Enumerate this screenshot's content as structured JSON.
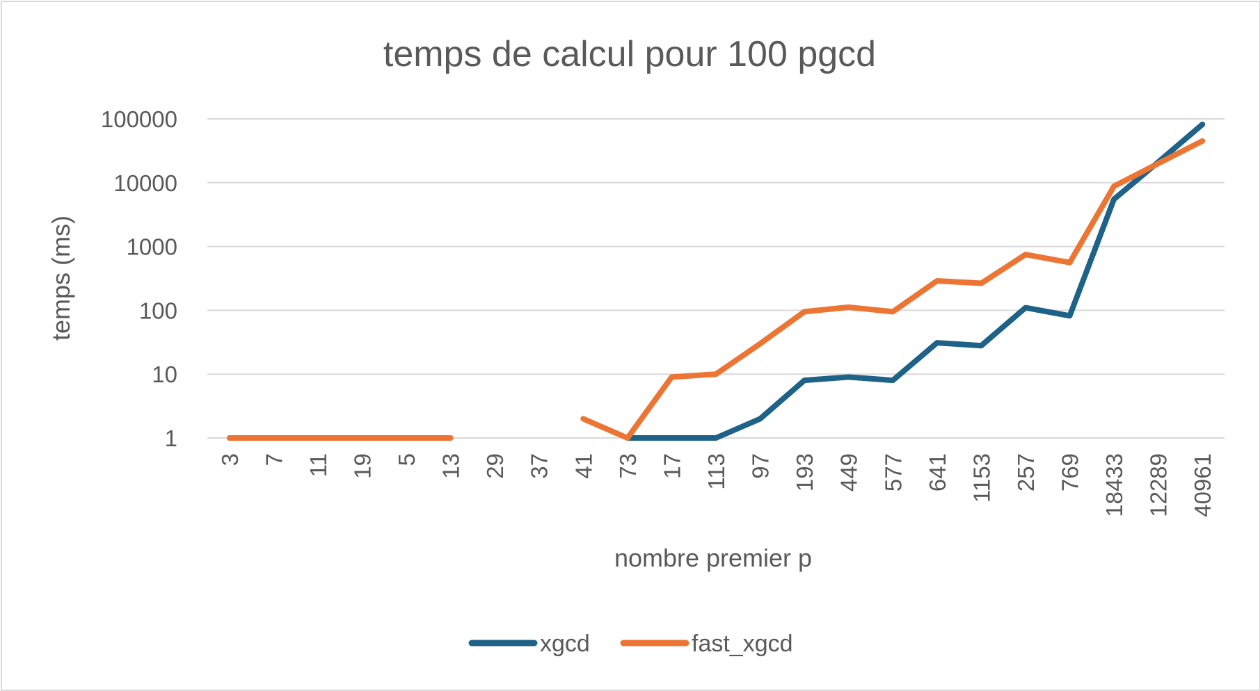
{
  "chart_data": {
    "type": "line",
    "title": "temps de calcul pour 100 pgcd",
    "xlabel": "nombre premier p",
    "ylabel": "temps (ms)",
    "yscale": "log",
    "ylim": [
      1,
      100000
    ],
    "yticks": [
      "1",
      "10",
      "100",
      "1000",
      "10000",
      "100000"
    ],
    "grid": true,
    "legend": "bottom",
    "categories": [
      "3",
      "7",
      "11",
      "19",
      "5",
      "13",
      "29",
      "37",
      "41",
      "73",
      "17",
      "113",
      "97",
      "193",
      "449",
      "577",
      "641",
      "1153",
      "257",
      "769",
      "18433",
      "12289",
      "40961"
    ],
    "series": [
      {
        "name": "xgcd",
        "color": "#1f6287",
        "values": [
          null,
          null,
          null,
          null,
          null,
          null,
          null,
          null,
          null,
          1,
          1,
          1,
          2,
          8,
          9,
          8,
          31,
          28,
          110,
          82,
          5500,
          21000,
          82000
        ]
      },
      {
        "name": "fast_xgcd",
        "color": "#ed7534",
        "values": [
          1,
          1,
          1,
          1,
          1,
          1,
          null,
          null,
          2,
          1,
          9,
          10,
          30,
          95,
          112,
          95,
          290,
          265,
          750,
          560,
          8800,
          20000,
          45000
        ]
      }
    ]
  }
}
